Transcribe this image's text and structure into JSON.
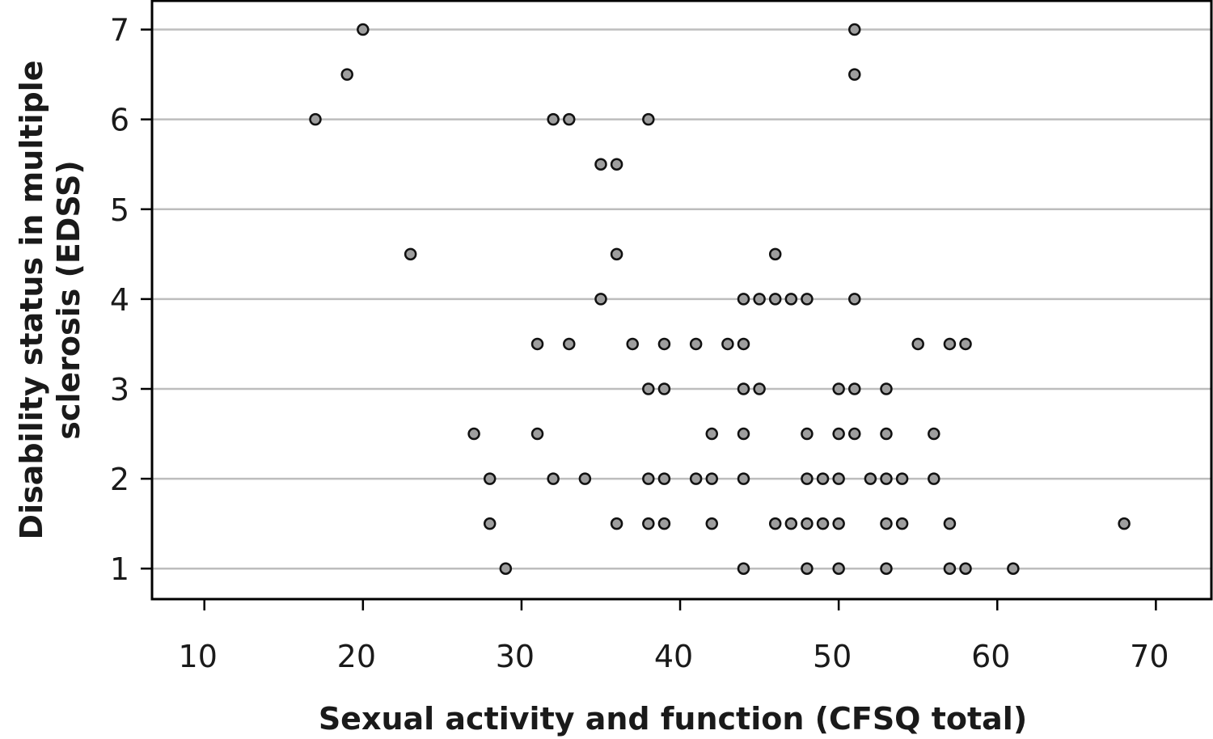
{
  "chart_data": {
    "type": "scatter",
    "xlabel": "Sexual activity and function (CFSQ total)",
    "ylabel_lines": [
      "Disability status in multiple",
      "sclerosis (EDSS)"
    ],
    "xlim": [
      6.7,
      73.5
    ],
    "ylim": [
      0.66,
      7.32
    ],
    "xticks": [
      10,
      20,
      30,
      40,
      50,
      60,
      70
    ],
    "yticks": [
      1,
      2,
      3,
      4,
      5,
      6,
      7
    ],
    "grid": "horizontal",
    "point_fill": "#9e9e9e",
    "point_stroke": "#111111",
    "grid_color": "#bdbdbd",
    "points": [
      [
        20,
        7
      ],
      [
        51,
        7
      ],
      [
        19,
        6.5
      ],
      [
        51,
        6.5
      ],
      [
        17,
        6
      ],
      [
        32,
        6
      ],
      [
        33,
        6
      ],
      [
        38,
        6
      ],
      [
        35,
        5.5
      ],
      [
        36,
        5.5
      ],
      [
        23,
        4.5
      ],
      [
        36,
        4.5
      ],
      [
        46,
        4.5
      ],
      [
        35,
        4
      ],
      [
        44,
        4
      ],
      [
        45,
        4
      ],
      [
        46,
        4
      ],
      [
        47,
        4
      ],
      [
        48,
        4
      ],
      [
        51,
        4
      ],
      [
        31,
        3.5
      ],
      [
        33,
        3.5
      ],
      [
        37,
        3.5
      ],
      [
        39,
        3.5
      ],
      [
        41,
        3.5
      ],
      [
        43,
        3.5
      ],
      [
        44,
        3.5
      ],
      [
        55,
        3.5
      ],
      [
        57,
        3.5
      ],
      [
        58,
        3.5
      ],
      [
        38,
        3
      ],
      [
        39,
        3
      ],
      [
        44,
        3
      ],
      [
        45,
        3
      ],
      [
        50,
        3
      ],
      [
        51,
        3
      ],
      [
        53,
        3
      ],
      [
        27,
        2.5
      ],
      [
        31,
        2.5
      ],
      [
        42,
        2.5
      ],
      [
        44,
        2.5
      ],
      [
        48,
        2.5
      ],
      [
        50,
        2.5
      ],
      [
        51,
        2.5
      ],
      [
        53,
        2.5
      ],
      [
        56,
        2.5
      ],
      [
        28,
        2
      ],
      [
        32,
        2
      ],
      [
        34,
        2
      ],
      [
        38,
        2
      ],
      [
        39,
        2
      ],
      [
        41,
        2
      ],
      [
        42,
        2
      ],
      [
        44,
        2
      ],
      [
        48,
        2
      ],
      [
        49,
        2
      ],
      [
        50,
        2
      ],
      [
        52,
        2
      ],
      [
        53,
        2
      ],
      [
        54,
        2
      ],
      [
        56,
        2
      ],
      [
        28,
        1.5
      ],
      [
        36,
        1.5
      ],
      [
        38,
        1.5
      ],
      [
        39,
        1.5
      ],
      [
        42,
        1.5
      ],
      [
        46,
        1.5
      ],
      [
        47,
        1.5
      ],
      [
        48,
        1.5
      ],
      [
        49,
        1.5
      ],
      [
        50,
        1.5
      ],
      [
        53,
        1.5
      ],
      [
        54,
        1.5
      ],
      [
        57,
        1.5
      ],
      [
        68,
        1.5
      ],
      [
        29,
        1
      ],
      [
        44,
        1
      ],
      [
        48,
        1
      ],
      [
        50,
        1
      ],
      [
        53,
        1
      ],
      [
        57,
        1
      ],
      [
        58,
        1
      ],
      [
        61,
        1
      ]
    ]
  }
}
